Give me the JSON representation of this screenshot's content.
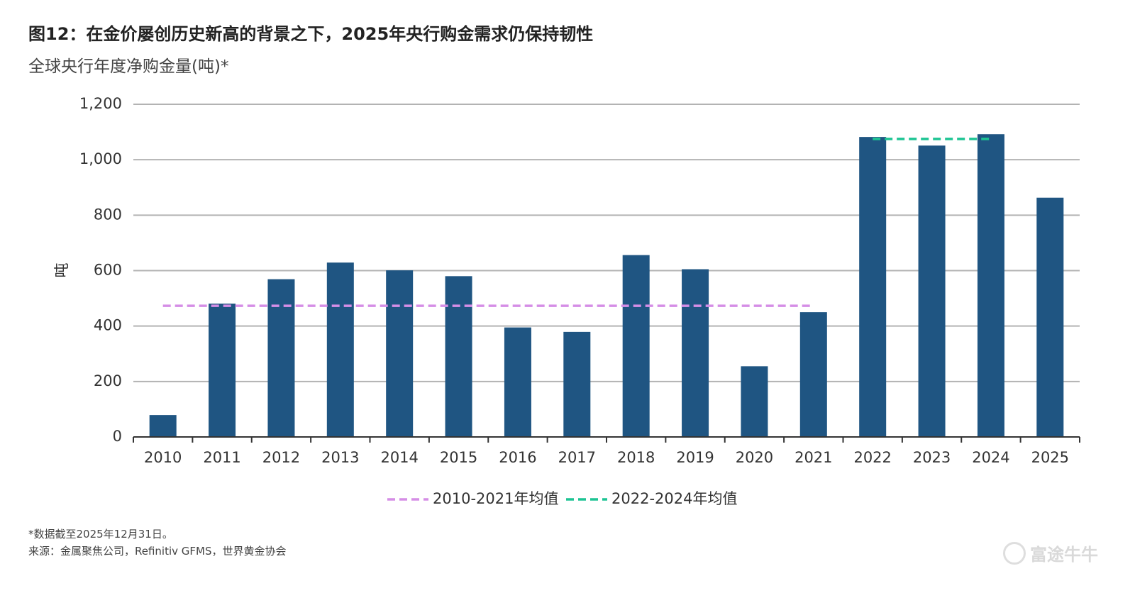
{
  "header": {
    "title": "图12：在金价屡创历史新高的背景之下，2025年央行购金需求仍保持韧性",
    "subtitle": "全球央行年度净购金量(吨)*"
  },
  "chart_data": {
    "type": "bar",
    "categories": [
      "2010",
      "2011",
      "2012",
      "2013",
      "2014",
      "2015",
      "2016",
      "2017",
      "2018",
      "2019",
      "2020",
      "2021",
      "2022",
      "2023",
      "2024",
      "2025"
    ],
    "values": [
      79,
      481,
      569,
      629,
      601,
      580,
      395,
      379,
      656,
      605,
      255,
      450,
      1082,
      1051,
      1092,
      863
    ],
    "ylabel": "吨",
    "ylim": [
      0,
      1200
    ],
    "yticks": [
      0,
      200,
      400,
      600,
      800,
      1000,
      1200
    ],
    "ytick_labels": [
      "0",
      "200",
      "400",
      "600",
      "800",
      "1,000",
      "1,200"
    ],
    "grid": true,
    "bar_color": "#1f5582",
    "averages": [
      {
        "name": "2010-2021年均值",
        "value": 473,
        "from": "2010",
        "to": "2021",
        "color": "#d58ee6"
      },
      {
        "name": "2022-2024年均值",
        "value": 1075,
        "from": "2022",
        "to": "2024",
        "color": "#1dc493"
      }
    ],
    "legend_position": "bottom-center"
  },
  "footer": {
    "footnote": "*数据截至2025年12月31日。",
    "source": "来源：金属聚焦公司，Refinitiv GFMS，世界黄金协会",
    "watermark": "富途牛牛"
  }
}
